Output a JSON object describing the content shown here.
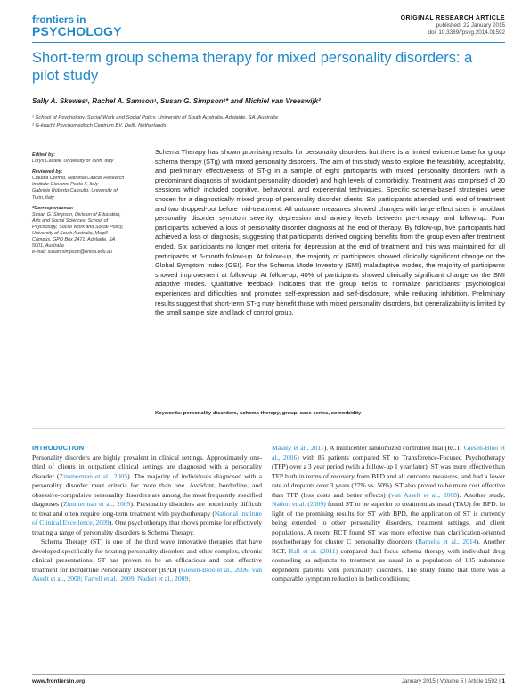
{
  "header": {
    "logo_line1": "frontiers in",
    "logo_line2": "PSYCHOLOGY",
    "article_type": "ORIGINAL RESEARCH ARTICLE",
    "published": "published: 22 January 2015",
    "doi": "doi: 10.3389/fpsyg.2014.01592"
  },
  "title": "Short-term group schema therapy for mixed personality disorders: a pilot study",
  "authors": "Sally A. Skewes¹, Rachel A. Samson¹, Susan G. Simpson¹* and Michiel van Vreeswijk²",
  "affiliations": [
    "¹ School of Psychology, Social Work and Social Policy, University of South Australia, Adelaide, SA, Australia",
    "² G-kracht Psychomedisch Centrum BV, Delft, Netherlands"
  ],
  "sidebar": {
    "edited_by_label": "Edited by:",
    "edited_by": "Lorys Castelli, University of Turin, Italy",
    "reviewed_by_label": "Reviewed by:",
    "reviewed_by": "Claudia Cormio, National Cancer Research Institute Giovanni Paolo II, Italy\nGabriele Roberto Cassullo, University of Turin, Italy",
    "correspondence_label": "*Correspondence:",
    "correspondence": "Susan G. Simpson, Division of Education, Arts and Social Sciences, School of Psychology, Social Work and Social Policy, University of South Australia, Magill Campus, GPO Box 2471, Adelaide, SA 5001, Australia\ne-mail: susan.simpson@unisa.edu.au"
  },
  "abstract": "Schema Therapy has shown promising results for personality disorders but there is a limited evidence base for group schema therapy (STg) with mixed personality disorders. The aim of this study was to explore the feasibility, acceptability, and preliminary effectiveness of ST-g in a sample of eight participants with mixed personality disorders (with a predominant diagnosis of avoidant personality disorder) and high levels of comorbidity. Treatment was comprised of 20 sessions which included cognitive, behavioral, and experiential techniques. Specific schema-based strategies were chosen for a diagnostically mixed group of personality disorder clients. Six participants attended until end of treatment and two dropped-out before mid-treatment. All outcome measures showed changes with large effect sizes in avoidant personality disorder symptom severity, depression and anxiety levels between pre-therapy and follow-up. Four participants achieved a loss of personality disorder diagnosis at the end of therapy. By follow-up, five participants had achieved a loss of diagnosis, suggesting that participants derived ongoing benefits from the group even after treatment ended. Six participants no longer met criteria for depression at the end of treatment and this was maintained for all participants at 6-month follow-up. At follow-up, the majority of participants showed clinically significant change on the Global Symptom Index (GSI). For the Schema Mode Inventory (SMI) maladaptive modes, the majority of participants showed improvement at follow-up. At follow-up, 40% of participants showed clinically significant change on the SMI adaptive modes. Qualitative feedback indicates that the group helps to normalize participants' psychological experiences and difficulties and promotes self-expression and self-disclosure, while reducing inhibition. Preliminary results suggest that short-term ST-g may benefit those with mixed personality disorders, but generalizability is limited by the small sample size and lack of control group.",
  "keywords_label": "Keywords:",
  "keywords": "personality disorders, schema therapy, group, case series, comorbidity",
  "intro": {
    "heading": "INTRODUCTION",
    "p1_a": "Personality disorders are highly prevalent in clinical settings. Approximately one-third of clients in outpatient clinical settings are diagnosed with a personality disorder (",
    "p1_c1": "Zimmerman et al., 2005",
    "p1_b": "). The majority of individuals diagnosed with a personality disorder meet criteria for more than one. Avoidant, borderline, and obsessive-compulsive personality disorders are among the most frequently specified diagnoses (",
    "p1_c2": "Zimmerman et al., 2005",
    "p1_d": "). Personality disorders are notoriously difficult to treat and often require long-term treatment with psychotherapy (",
    "p1_c3": "National Institute of Clinical Excellence, 2009",
    "p1_e": "). One psychotherapy that shows promise for effectively treating a range of personality disorders is Schema Therapy.",
    "p2_a": "Schema Therapy (ST) is one of the third wave innovative therapies that have developed specifically for treating personality disorders and other complex, chronic clinical presentations. ST has proven to be an efficacious and cost effective treatment for Borderline Personality Disorder (BPD) (",
    "p2_c1": "Giesen-Bloo et al., 2006; van Asselt et al., 2008; Farrell et al., 2009; Nadort et al., 2009;",
    "r_c1": "Masley et al., 2011",
    "r_a": "). A multicenter randomized controlled trial (RCT; ",
    "r_c2": "Giesen-Bloo et al., 2006",
    "r_b": ") with 86 patients compared ST to Transference-Focused Psychotherapy (TFP) over a 3 year period (with a follow-up 1 year later). ST was more effective than TFP both in terms of recovery from BPD and all outcome measures, and had a lower rate of dropouts over 3 years (27% vs. 50%). ST also proved to be more cost effective than TFP (less costs and better effects) (",
    "r_c3": "van Asselt et al., 2008",
    "r_c": "). Another study, ",
    "r_c4": "Nadort et al. (2009)",
    "r_d": " found ST to be superior to treatment as usual (TAU) for BPD. In light of the promising results for ST with BPD, the application of ST is currently being extended to other personality disorders, treatment settings, and client populations. A recent RCT found ST was more effective than clarification-oriented psychotherapy for cluster C personality disorders (",
    "r_c5": "Bamelis et al., 2014",
    "r_e": "). Another RCT, ",
    "r_c6": "Ball et al. (2011)",
    "r_f": " compared dual-focus schema therapy with individual drug counseling as adjuncts to treatment as usual in a population of 105 substance dependent patients with personality disorders. The study found that there was a comparable symptom reduction in both conditions;"
  },
  "footer": {
    "site": "www.frontiersin.org",
    "issue": "January 2015 | Volume 5 | Article 1592 |",
    "page": "1"
  },
  "colors": {
    "accent": "#1e88c9"
  }
}
